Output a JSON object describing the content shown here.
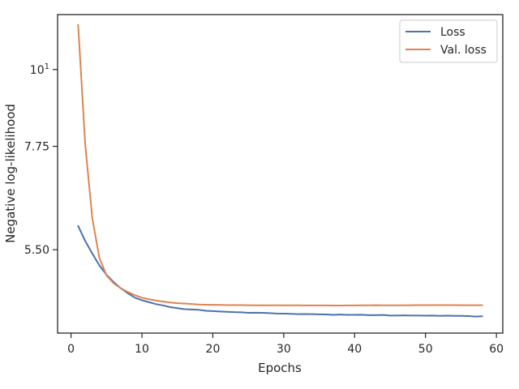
{
  "chart_data": {
    "type": "line",
    "xlabel": "Epochs",
    "ylabel": "Negative log-likelihood",
    "xlim": [
      -1.9,
      60.9
    ],
    "ylim": [
      4.17,
      12.0
    ],
    "y_scale": "log",
    "x_ticks": [
      0,
      10,
      20,
      30,
      40,
      50,
      60
    ],
    "y_ticks": [
      {
        "value": 10,
        "label": "10",
        "superscript": "1"
      },
      {
        "value": 7.75,
        "label": "7.75"
      },
      {
        "value": 5.5,
        "label": "5.50"
      }
    ],
    "grid": false,
    "legend_position": "upper right",
    "x": [
      1,
      2,
      3,
      4,
      5,
      6,
      7,
      8,
      9,
      10,
      11,
      12,
      13,
      14,
      15,
      16,
      17,
      18,
      19,
      20,
      21,
      22,
      23,
      24,
      25,
      26,
      27,
      28,
      29,
      30,
      31,
      32,
      33,
      34,
      35,
      36,
      37,
      38,
      39,
      40,
      41,
      42,
      43,
      44,
      45,
      46,
      47,
      48,
      49,
      50,
      51,
      52,
      53,
      54,
      55,
      56,
      57,
      58
    ],
    "series": [
      {
        "name": "Loss",
        "color": "#4c72b0",
        "values": [
          5.95,
          5.66,
          5.43,
          5.22,
          5.06,
          4.94,
          4.84,
          4.76,
          4.69,
          4.65,
          4.62,
          4.59,
          4.57,
          4.545,
          4.53,
          4.515,
          4.51,
          4.505,
          4.49,
          4.485,
          4.48,
          4.475,
          4.47,
          4.468,
          4.46,
          4.462,
          4.46,
          4.455,
          4.45,
          4.448,
          4.445,
          4.44,
          4.442,
          4.44,
          4.438,
          4.436,
          4.43,
          4.435,
          4.43,
          4.43,
          4.432,
          4.425,
          4.426,
          4.428,
          4.42,
          4.42,
          4.422,
          4.42,
          4.42,
          4.418,
          4.42,
          4.415,
          4.418,
          4.415,
          4.415,
          4.413,
          4.405,
          4.41
        ]
      },
      {
        "name": "Val. loss",
        "color": "#dd8452",
        "values": [
          11.6,
          7.8,
          6.1,
          5.35,
          5.05,
          4.92,
          4.84,
          4.78,
          4.73,
          4.69,
          4.665,
          4.645,
          4.63,
          4.615,
          4.605,
          4.6,
          4.593,
          4.585,
          4.582,
          4.58,
          4.578,
          4.576,
          4.576,
          4.575,
          4.574,
          4.573,
          4.573,
          4.573,
          4.573,
          4.573,
          4.572,
          4.572,
          4.571,
          4.571,
          4.571,
          4.571,
          4.57,
          4.57,
          4.571,
          4.571,
          4.572,
          4.573,
          4.574,
          4.572,
          4.573,
          4.573,
          4.573,
          4.574,
          4.575,
          4.575,
          4.575,
          4.575,
          4.575,
          4.575,
          4.574,
          4.574,
          4.574,
          4.574
        ]
      }
    ]
  }
}
